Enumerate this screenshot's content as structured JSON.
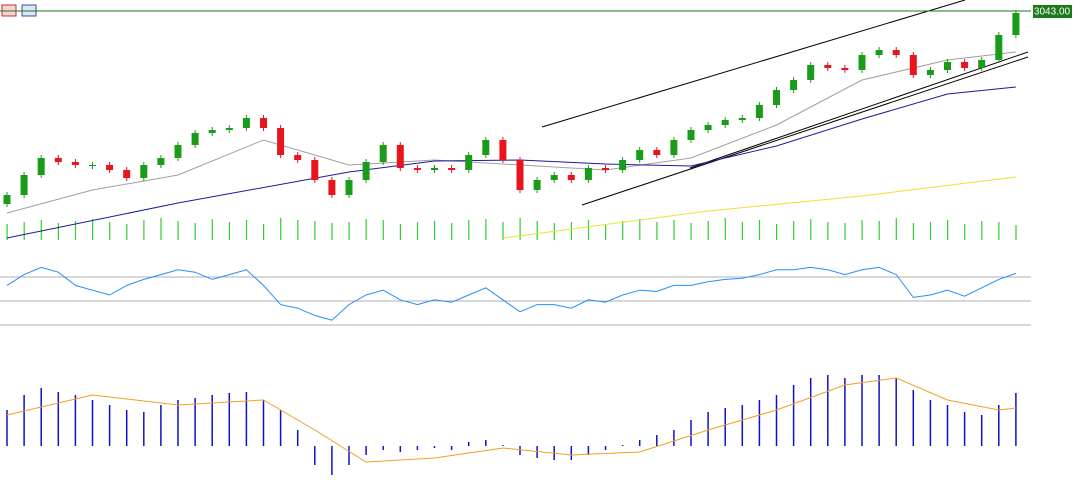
{
  "chart_data": {
    "type": "candlestick",
    "first_open": 2850,
    "close": [
      2859,
      2879,
      2896,
      2892,
      2889,
      2889,
      2884,
      2876,
      2889,
      2896,
      2909,
      2921,
      2924,
      2926,
      2936,
      2926,
      2899,
      2894,
      2874,
      2859,
      2874,
      2892,
      2909,
      2886,
      2884,
      2886,
      2884,
      2899,
      2914,
      2894,
      2864,
      2874,
      2879,
      2874,
      2886,
      2884,
      2894,
      2904,
      2899,
      2914,
      2924,
      2929,
      2934,
      2936,
      2949,
      2964,
      2974,
      2989,
      2986,
      2984,
      2999,
      3004,
      2999,
      2979,
      2984,
      2992,
      2986,
      2994,
      3019,
      3041
    ],
    "up_color": "#1a9b1a",
    "down_color": "#e8141e",
    "ylim": [
      2810,
      3054
    ],
    "last_price": 3043,
    "last_price_label": "3043.00",
    "last_price_color": "#1a7a1a",
    "moving_averages": [
      {
        "color": "#a0a0a0",
        "x": [
          0,
          5,
          10,
          15,
          20,
          25,
          30,
          35,
          40,
          45,
          50,
          55,
          59
        ],
        "values": [
          2841,
          2864,
          2879,
          2914,
          2889,
          2894,
          2889,
          2884,
          2896,
          2929,
          2974,
          2994,
          3002
        ]
      },
      {
        "color": "#1a1aa0",
        "x": [
          0,
          10,
          20,
          25,
          30,
          35,
          40,
          45,
          50,
          55,
          59
        ],
        "values": [
          2816,
          2851,
          2882,
          2893,
          2894,
          2890,
          2888,
          2908,
          2935,
          2960,
          2967
        ]
      },
      {
        "color": "#f0e030",
        "x": [
          29,
          41,
          50,
          59
        ],
        "values": [
          2816,
          2843,
          2858,
          2877
        ]
      }
    ],
    "volume": {
      "color": "#33cc33",
      "ylim": [
        0,
        40
      ],
      "values": [
        16,
        18,
        20,
        17,
        19,
        21,
        18,
        16,
        20,
        22,
        19,
        17,
        21,
        18,
        20,
        16,
        22,
        20,
        19,
        17,
        18,
        21,
        20,
        16,
        18,
        19,
        17,
        20,
        21,
        18,
        22,
        19,
        17,
        18,
        20,
        16,
        19,
        21,
        18,
        20,
        17,
        19,
        22,
        18,
        20,
        16,
        19,
        21,
        18,
        17,
        20,
        19,
        22,
        17,
        18,
        20,
        16,
        19,
        18,
        15
      ]
    },
    "rsi": {
      "color": "#1e90ff",
      "level_color": "#b0b0b0",
      "ylim": [
        20,
        80
      ],
      "levels": [
        30,
        50,
        70
      ],
      "values": [
        63,
        72,
        78,
        74,
        63,
        59,
        55,
        63,
        68,
        72,
        76,
        74,
        68,
        72,
        76,
        63,
        47,
        44,
        38,
        34,
        47,
        55,
        59,
        51,
        47,
        51,
        49,
        55,
        61,
        51,
        41,
        47,
        47,
        44,
        51,
        49,
        55,
        59,
        58,
        63,
        63,
        66,
        68,
        69,
        72,
        76,
        76,
        78,
        76,
        72,
        76,
        78,
        72,
        53,
        55,
        59,
        54,
        61,
        68,
        73
      ]
    },
    "macd": {
      "histogram_color": "#1010c8",
      "signal_color": "#f0a020",
      "ylim": [
        -40,
        80
      ],
      "histogram": [
        36,
        51,
        58,
        54,
        51,
        46,
        41,
        36,
        34,
        41,
        46,
        48,
        51,
        53,
        54,
        46,
        36,
        16,
        -19,
        -29,
        -19,
        -9,
        -4,
        -6,
        -4,
        -2,
        -4,
        4,
        6,
        1,
        -9,
        -12,
        -14,
        -14,
        -9,
        -4,
        1,
        6,
        11,
        16,
        26,
        34,
        38,
        41,
        46,
        51,
        61,
        68,
        71,
        68,
        71,
        71,
        68,
        56,
        46,
        41,
        34,
        31,
        41,
        53
      ],
      "signal_x": [
        0,
        5,
        10,
        15,
        18,
        21,
        25,
        29,
        33,
        37,
        41,
        45,
        49,
        52,
        55,
        58,
        59
      ],
      "signal": [
        31,
        51,
        41,
        46,
        16,
        -16,
        -12,
        -2,
        -9,
        -6,
        16,
        36,
        61,
        68,
        46,
        36,
        38
      ]
    }
  }
}
